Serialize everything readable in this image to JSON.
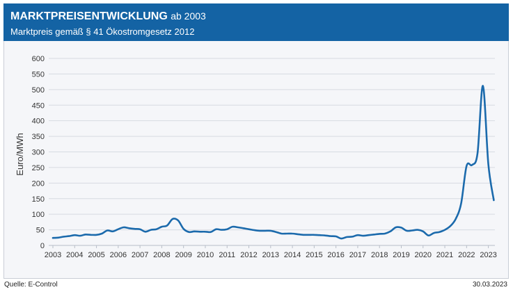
{
  "header": {
    "title_main": "MARKTPREISENTWICKLUNG",
    "title_suffix": "ab 2003",
    "subtitle": "Marktpreis gemäß § 41 Ökostromgesetz 2012",
    "background_color": "#1463a4"
  },
  "footer": {
    "source": "Quelle: E-Control",
    "date": "30.03.2023"
  },
  "chart_data": {
    "type": "line",
    "title": "MARKTPREISENTWICKLUNG ab 2003",
    "subtitle": "Marktpreis gemäß § 41 Ökostromgesetz 2012",
    "xlabel": "",
    "ylabel": "Euro/MWh",
    "xlim": [
      2003,
      2023.3
    ],
    "ylim": [
      0,
      600
    ],
    "yticks": [
      0,
      50,
      100,
      150,
      200,
      250,
      300,
      350,
      400,
      450,
      500,
      550,
      600
    ],
    "xticks": [
      2003,
      2004,
      2005,
      2006,
      2007,
      2008,
      2009,
      2010,
      2011,
      2012,
      2013,
      2014,
      2015,
      2016,
      2017,
      2018,
      2019,
      2020,
      2021,
      2022,
      2023
    ],
    "grid": true,
    "line_color": "#1b6aac",
    "series": [
      {
        "x": [
          2003.0,
          2003.25,
          2003.5,
          2003.75,
          2004.0,
          2004.25,
          2004.5,
          2004.75,
          2005.0,
          2005.25,
          2005.5,
          2005.75,
          2006.0,
          2006.25,
          2006.5,
          2006.75,
          2007.0,
          2007.25,
          2007.5,
          2007.75,
          2008.0,
          2008.25,
          2008.5,
          2008.75,
          2009.0,
          2009.25,
          2009.5,
          2009.75,
          2010.0,
          2010.25,
          2010.5,
          2010.75,
          2011.0,
          2011.25,
          2011.5,
          2011.75,
          2012.0,
          2012.25,
          2012.5,
          2012.75,
          2013.0,
          2013.25,
          2013.5,
          2013.75,
          2014.0,
          2014.25,
          2014.5,
          2014.75,
          2015.0,
          2015.25,
          2015.5,
          2015.75,
          2016.0,
          2016.25,
          2016.5,
          2016.75,
          2017.0,
          2017.25,
          2017.5,
          2017.75,
          2018.0,
          2018.25,
          2018.5,
          2018.75,
          2019.0,
          2019.25,
          2019.5,
          2019.75,
          2020.0,
          2020.25,
          2020.5,
          2020.75,
          2021.0,
          2021.25,
          2021.5,
          2021.75,
          2022.0,
          2022.25,
          2022.5,
          2022.75,
          2023.0,
          2023.25
        ],
        "y": [
          24,
          25,
          28,
          30,
          33,
          31,
          35,
          34,
          34,
          38,
          48,
          45,
          52,
          58,
          55,
          53,
          52,
          44,
          50,
          52,
          60,
          64,
          85,
          80,
          53,
          43,
          45,
          44,
          44,
          43,
          52,
          50,
          52,
          60,
          58,
          55,
          52,
          49,
          47,
          47,
          47,
          43,
          38,
          38,
          38,
          36,
          34,
          34,
          34,
          33,
          32,
          30,
          29,
          22,
          27,
          28,
          33,
          31,
          33,
          35,
          37,
          38,
          45,
          58,
          57,
          47,
          48,
          50,
          45,
          32,
          40,
          43,
          50,
          62,
          85,
          135,
          255,
          258,
          295,
          512,
          260,
          145
        ]
      }
    ]
  }
}
